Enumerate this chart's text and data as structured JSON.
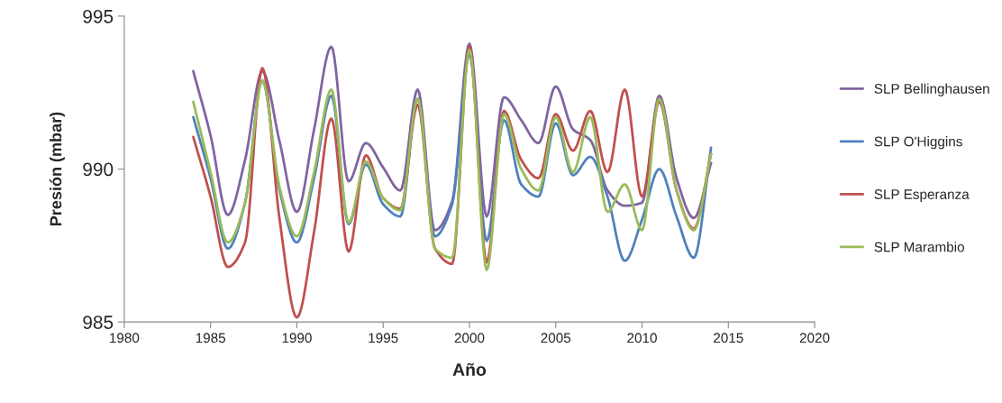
{
  "chart_data": {
    "type": "line",
    "xlabel": "Año",
    "ylabel": "Presión (mbar)",
    "x": [
      1984,
      1985,
      1986,
      1987,
      1988,
      1989,
      1990,
      1991,
      1992,
      1993,
      1994,
      1995,
      1996,
      1997,
      1998,
      1999,
      2000,
      2001,
      2002,
      2003,
      2004,
      2005,
      2006,
      2007,
      2008,
      2009,
      2010,
      2011,
      2012,
      2013,
      2014
    ],
    "series": [
      {
        "name": "SLP Bellinghausen",
        "color": "#8064a2",
        "values": [
          993.2,
          991.1,
          988.5,
          990.3,
          993.2,
          990.9,
          988.6,
          991.3,
          994.0,
          989.6,
          990.85,
          990.05,
          989.3,
          992.6,
          988.0,
          988.95,
          994.1,
          988.45,
          992.35,
          991.6,
          990.85,
          992.7,
          991.3,
          990.95,
          989.3,
          988.8,
          988.9,
          992.4,
          989.7,
          988.4,
          990.2
        ]
      },
      {
        "name": "SLP O'Higgins",
        "color": "#4f81bd",
        "values": [
          991.7,
          989.7,
          987.4,
          988.9,
          992.9,
          989.3,
          987.6,
          989.7,
          992.4,
          988.2,
          990.15,
          988.85,
          988.45,
          992.3,
          987.8,
          988.85,
          993.75,
          987.65,
          991.6,
          989.5,
          989.1,
          991.5,
          989.8,
          990.4,
          989.1,
          987.0,
          988.35,
          990.0,
          988.45,
          987.1,
          990.7
        ]
      },
      {
        "name": "SLP Esperanza",
        "color": "#c0504d",
        "values": [
          991.05,
          989.1,
          986.8,
          987.6,
          993.3,
          988.35,
          985.15,
          987.95,
          991.65,
          987.3,
          990.45,
          989.05,
          988.7,
          992.1,
          987.4,
          986.9,
          994.0,
          986.95,
          991.9,
          990.3,
          989.7,
          991.8,
          990.6,
          991.9,
          989.9,
          992.6,
          989.1,
          992.2,
          989.3,
          988.05,
          990.5
        ]
      },
      {
        "name": "SLP Marambio",
        "color": "#9bbb59",
        "values": [
          992.2,
          989.9,
          987.6,
          988.9,
          992.9,
          989.4,
          987.8,
          989.9,
          992.6,
          988.25,
          990.25,
          989.05,
          988.65,
          992.3,
          987.4,
          987.1,
          993.9,
          986.7,
          991.8,
          990.0,
          989.3,
          991.7,
          989.9,
          991.7,
          988.6,
          989.5,
          988.0,
          992.3,
          989.3,
          988.0,
          990.5
        ]
      }
    ],
    "xlim": [
      1980,
      2020
    ],
    "xticks": [
      1980,
      1985,
      1990,
      1995,
      2000,
      2005,
      2010,
      2015,
      2020
    ],
    "ylim": [
      985,
      995
    ],
    "yticks": [
      985,
      990,
      995
    ],
    "grid": false,
    "legend": "right",
    "marker": "none",
    "line_style": "solid"
  }
}
